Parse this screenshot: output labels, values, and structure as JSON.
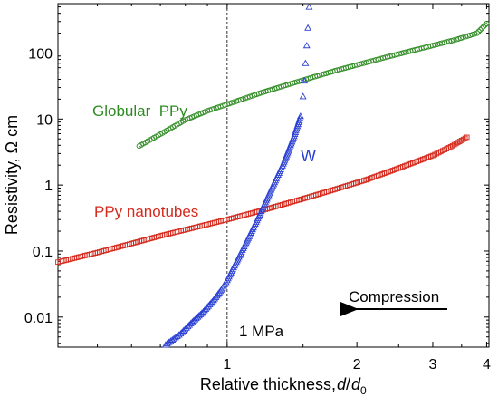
{
  "chart_data": {
    "type": "scatter",
    "xlabel_main": "Relative thickness, ",
    "xlabel_var1": "d",
    "xlabel_slash": "/",
    "xlabel_var2": "d",
    "xlabel_sub": "0",
    "ylabel": "Resistivity, Ω cm",
    "x_scale": "log",
    "y_scale": "log",
    "xlim": [
      0.405,
      4.05
    ],
    "ylim": [
      0.0035,
      560
    ],
    "x_ticks": [
      {
        "value": 1,
        "label": "1"
      },
      {
        "value": 2,
        "label": "2"
      },
      {
        "value": 3,
        "label": "3"
      },
      {
        "value": 4,
        "label": "4"
      }
    ],
    "y_ticks": [
      {
        "value": 0.01,
        "label": "0.01"
      },
      {
        "value": 0.1,
        "label": "0.1"
      },
      {
        "value": 1,
        "label": "1"
      },
      {
        "value": 10,
        "label": "10"
      },
      {
        "value": 100,
        "label": "100"
      }
    ],
    "series": [
      {
        "name": "Globular  PPy",
        "color": "#2e8b22",
        "marker": "circle",
        "x": [
          0.625,
          0.7,
          0.8,
          0.9,
          1.0,
          1.2,
          1.4,
          1.6,
          1.8,
          2.0,
          2.3,
          2.6,
          3.0,
          3.4,
          3.8,
          4.0
        ],
        "y": [
          3.9,
          5.9,
          9.7,
          13.3,
          16.7,
          25,
          34,
          44,
          55,
          66,
          84,
          103,
          130,
          160,
          200,
          280
        ]
      },
      {
        "name": "PPy nanotubes",
        "color": "#d42a1e",
        "marker": "square",
        "x": [
          0.405,
          0.5,
          0.6,
          0.7,
          0.8,
          1.0,
          1.2,
          1.5,
          1.8,
          2.1,
          2.5,
          3.0,
          3.3,
          3.6
        ],
        "y": [
          0.068,
          0.095,
          0.13,
          0.17,
          0.21,
          0.3,
          0.41,
          0.62,
          0.88,
          1.2,
          1.8,
          2.8,
          3.8,
          5.3
        ]
      },
      {
        "name": "W",
        "color": "#2a3fd4",
        "marker": "triangle",
        "x": [
          0.72,
          0.78,
          0.83,
          0.88,
          0.93,
          0.97,
          1.0,
          1.04,
          1.09,
          1.14,
          1.2,
          1.27,
          1.35,
          1.43,
          1.48,
          1.5,
          1.51,
          1.52,
          1.53,
          1.54,
          1.55
        ],
        "y": [
          0.0038,
          0.0056,
          0.0084,
          0.012,
          0.018,
          0.026,
          0.036,
          0.06,
          0.11,
          0.2,
          0.4,
          0.9,
          2.1,
          5.5,
          11,
          22,
          38,
          70,
          130,
          240,
          500
        ]
      }
    ],
    "annotations": {
      "globular_label": "Globular  PPy",
      "nanotubes_label": "PPy nanotubes",
      "w_label": "W",
      "pressure_label": "1 MPa",
      "pressure_line_x": 1,
      "compression_label": "Compression"
    },
    "grid": false,
    "legend": "none"
  }
}
